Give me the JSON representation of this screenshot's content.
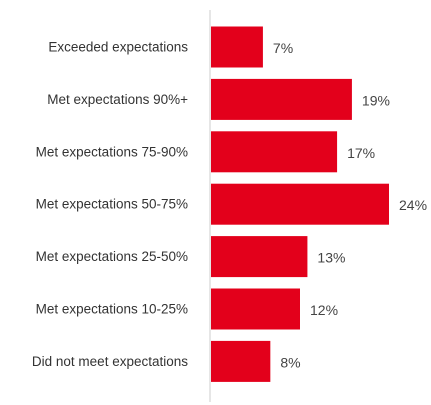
{
  "chart_data": {
    "type": "bar",
    "orientation": "horizontal",
    "categories": [
      "Exceeded expectations",
      "Met expectations 90%+",
      "Met expectations 75-90%",
      "Met expectations 50-75%",
      "Met expectations 25-50%",
      "Met expectations 10-25%",
      "Did not meet expectations"
    ],
    "values": [
      7,
      19,
      17,
      24,
      13,
      12,
      8
    ],
    "value_labels": [
      "7%",
      "19%",
      "17%",
      "24%",
      "13%",
      "12%",
      "8%"
    ],
    "value_unit": "%",
    "title": "",
    "xlabel": "",
    "ylabel": "",
    "xlim": [
      0,
      24
    ],
    "grid": false,
    "legend": "none",
    "bar_color": "#e3001b",
    "axis_color": "#cccccc"
  }
}
